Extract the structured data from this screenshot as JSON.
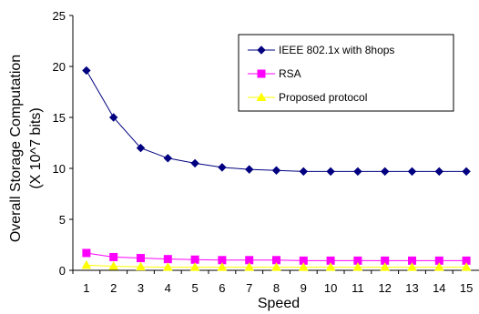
{
  "chart_data": {
    "type": "line",
    "title": "",
    "xlabel": "Speed",
    "ylabel": [
      "Overall Storage Computation",
      "(X 10^7 bits)"
    ],
    "categories": [
      1,
      2,
      3,
      4,
      5,
      6,
      7,
      8,
      9,
      10,
      11,
      12,
      13,
      14,
      15
    ],
    "ylim": [
      0,
      25
    ],
    "yticks": [
      0,
      5,
      10,
      15,
      20,
      25
    ],
    "grid": false,
    "legend_position": "top-right",
    "series": [
      {
        "name": "IEEE 802.1x with 8hops",
        "color": "#000080",
        "marker": "diamond",
        "values": [
          19.6,
          15.0,
          12.0,
          11.0,
          10.5,
          10.1,
          9.9,
          9.8,
          9.7,
          9.7,
          9.7,
          9.7,
          9.7,
          9.7,
          9.7
        ]
      },
      {
        "name": "RSA",
        "color": "#ff00ff",
        "marker": "square",
        "values": [
          1.7,
          1.3,
          1.2,
          1.1,
          1.05,
          1.0,
          1.0,
          1.0,
          0.95,
          0.95,
          0.95,
          0.95,
          0.95,
          0.95,
          0.95
        ]
      },
      {
        "name": "Proposed protocol",
        "color": "#ffff00",
        "marker": "triangle",
        "values": [
          0.5,
          0.4,
          0.35,
          0.3,
          0.3,
          0.3,
          0.3,
          0.3,
          0.3,
          0.3,
          0.3,
          0.3,
          0.3,
          0.3,
          0.3
        ]
      }
    ]
  }
}
